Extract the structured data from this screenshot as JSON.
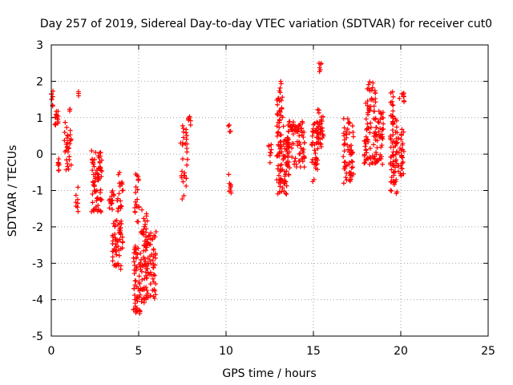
{
  "chart_data": {
    "type": "scatter",
    "title": "Day 257 of 2019, Sidereal Day-to-day VTEC variation (SDTVAR) for receiver cut0",
    "xlabel": "GPS time / hours",
    "ylabel": "SDTVAR / TECUs",
    "xlim": [
      0,
      25
    ],
    "ylim": [
      -5,
      3
    ],
    "x_ticks": [
      0,
      5,
      10,
      15,
      20,
      25
    ],
    "y_ticks": [
      -5,
      -4,
      -3,
      -2,
      -1,
      0,
      1,
      2,
      3
    ],
    "grid": true,
    "marker": "plus",
    "color": "#ff0000",
    "clusters": [
      {
        "x": [
          0.0,
          0.1
        ],
        "y": [
          1.3,
          1.85
        ],
        "n": 8
      },
      {
        "x": [
          0.2,
          0.4
        ],
        "y": [
          0.8,
          1.2
        ],
        "n": 14
      },
      {
        "x": [
          0.3,
          0.45
        ],
        "y": [
          -0.5,
          -0.1
        ],
        "n": 8
      },
      {
        "x": [
          0.75,
          1.15
        ],
        "y": [
          -0.6,
          0.9
        ],
        "n": 30
      },
      {
        "x": [
          1.0,
          1.1
        ],
        "y": [
          1.1,
          1.25
        ],
        "n": 3
      },
      {
        "x": [
          1.4,
          1.55
        ],
        "y": [
          -1.6,
          -0.9
        ],
        "n": 8
      },
      {
        "x": [
          1.5,
          1.6
        ],
        "y": [
          1.6,
          1.75
        ],
        "n": 3
      },
      {
        "x": [
          2.3,
          2.9
        ],
        "y": [
          -1.6,
          0.1
        ],
        "n": 70
      },
      {
        "x": [
          3.3,
          3.6
        ],
        "y": [
          -1.6,
          -1.0
        ],
        "n": 15
      },
      {
        "x": [
          3.5,
          4.1
        ],
        "y": [
          -3.2,
          -1.8
        ],
        "n": 55
      },
      {
        "x": [
          3.7,
          4.1
        ],
        "y": [
          -1.6,
          -0.5
        ],
        "n": 20
      },
      {
        "x": [
          4.7,
          5.1
        ],
        "y": [
          -4.4,
          -2.5
        ],
        "n": 55
      },
      {
        "x": [
          4.75,
          5.05
        ],
        "y": [
          -2.0,
          -0.5
        ],
        "n": 20
      },
      {
        "x": [
          5.1,
          5.5
        ],
        "y": [
          -4.1,
          -1.5
        ],
        "n": 55
      },
      {
        "x": [
          5.4,
          6.0
        ],
        "y": [
          -4.0,
          -2.1
        ],
        "n": 60
      },
      {
        "x": [
          7.4,
          7.8
        ],
        "y": [
          -1.3,
          0.8
        ],
        "n": 30
      },
      {
        "x": [
          7.8,
          8.0
        ],
        "y": [
          0.7,
          1.1
        ],
        "n": 6
      },
      {
        "x": [
          10.1,
          10.3
        ],
        "y": [
          -1.1,
          -0.5
        ],
        "n": 8
      },
      {
        "x": [
          10.1,
          10.3
        ],
        "y": [
          0.5,
          0.8
        ],
        "n": 4
      },
      {
        "x": [
          12.4,
          12.6
        ],
        "y": [
          -0.5,
          0.9
        ],
        "n": 8
      },
      {
        "x": [
          12.9,
          13.25
        ],
        "y": [
          0.8,
          2.0
        ],
        "n": 25
      },
      {
        "x": [
          12.9,
          13.6
        ],
        "y": [
          -1.1,
          0.8
        ],
        "n": 90
      },
      {
        "x": [
          13.5,
          14.5
        ],
        "y": [
          -0.4,
          0.9
        ],
        "n": 80
      },
      {
        "x": [
          14.9,
          15.3
        ],
        "y": [
          -0.8,
          0.9
        ],
        "n": 40
      },
      {
        "x": [
          15.2,
          15.6
        ],
        "y": [
          0.2,
          1.4
        ],
        "n": 30
      },
      {
        "x": [
          15.3,
          15.5
        ],
        "y": [
          2.2,
          2.5
        ],
        "n": 6
      },
      {
        "x": [
          16.7,
          17.3
        ],
        "y": [
          -0.8,
          1.0
        ],
        "n": 60
      },
      {
        "x": [
          17.9,
          19.0
        ],
        "y": [
          -0.3,
          1.2
        ],
        "n": 100
      },
      {
        "x": [
          18.0,
          18.6
        ],
        "y": [
          1.2,
          2.0
        ],
        "n": 25
      },
      {
        "x": [
          19.4,
          19.9
        ],
        "y": [
          -1.1,
          1.0
        ],
        "n": 70
      },
      {
        "x": [
          19.4,
          19.6
        ],
        "y": [
          1.0,
          1.9
        ],
        "n": 12
      },
      {
        "x": [
          19.9,
          20.2
        ],
        "y": [
          -0.6,
          0.8
        ],
        "n": 25
      },
      {
        "x": [
          19.9,
          20.2
        ],
        "y": [
          1.4,
          1.7
        ],
        "n": 8
      }
    ]
  }
}
